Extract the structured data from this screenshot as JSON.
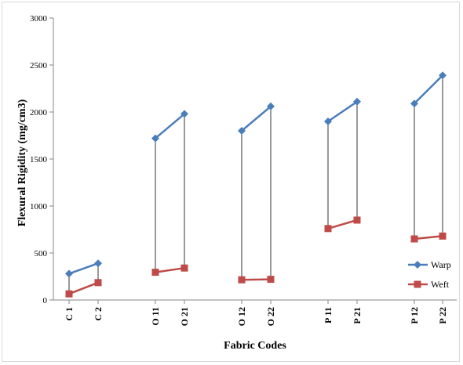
{
  "chart_data": {
    "type": "line",
    "xlabel": "Fabric Codes",
    "ylabel": "Flexural Rigidity (mg/cm3)",
    "ylim": [
      0,
      3000
    ],
    "yticks": [
      0,
      500,
      1000,
      1500,
      2000,
      2500,
      3000
    ],
    "grid": false,
    "legend_position": "bottom-right",
    "groups": [
      [
        "C 1",
        "C 2"
      ],
      [
        "O 11",
        "O 21"
      ],
      [
        "O 12",
        "O 22"
      ],
      [
        "P 11",
        "P 21"
      ],
      [
        "P 12",
        "P 22"
      ]
    ],
    "categories": [
      "C 1",
      "C 2",
      "O 11",
      "O 21",
      "O 12",
      "O 22",
      "P 11",
      "P 21",
      "P 12",
      "P 22"
    ],
    "series": [
      {
        "name": "Warp",
        "color": "#4a7ebb",
        "marker": "diamond",
        "values": [
          280,
          390,
          1720,
          1980,
          1800,
          2060,
          1900,
          2110,
          2090,
          2390
        ]
      },
      {
        "name": "Weft",
        "color": "#be4b48",
        "marker": "square",
        "values": [
          65,
          185,
          295,
          340,
          215,
          220,
          760,
          850,
          650,
          680
        ]
      }
    ],
    "drop_lines": true
  }
}
